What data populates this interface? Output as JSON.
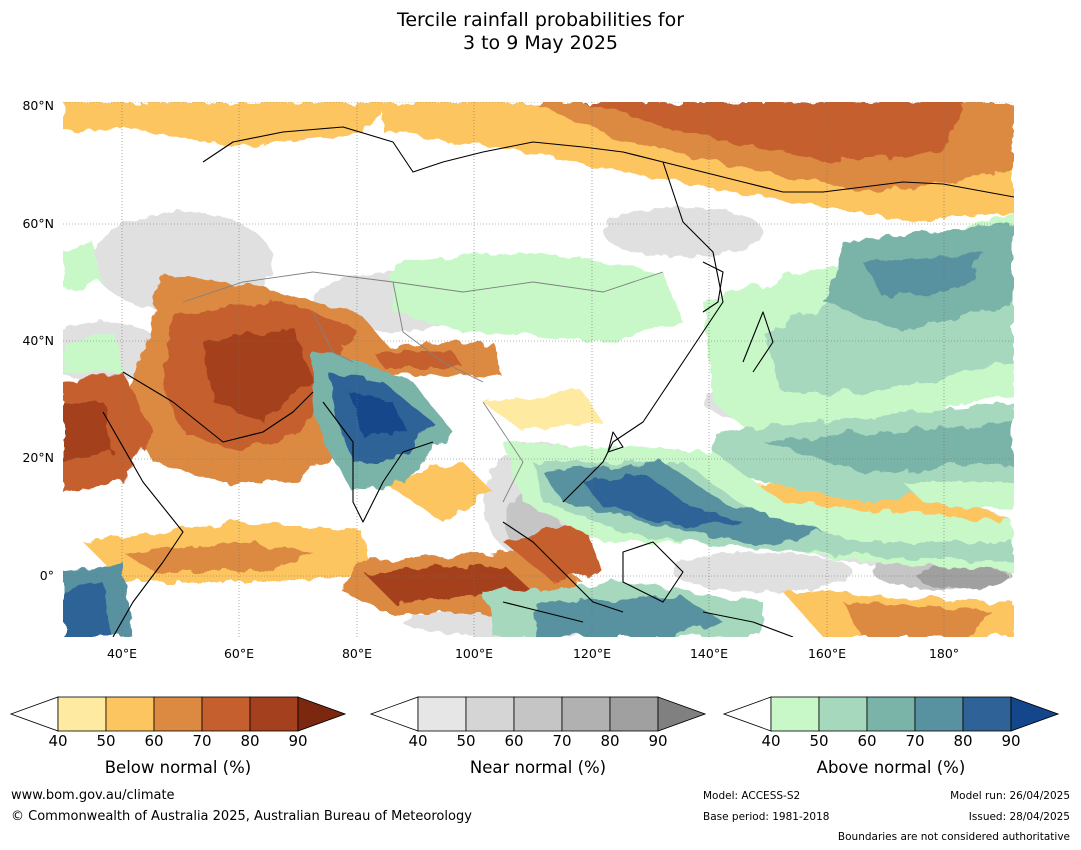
{
  "title": {
    "line1": "Tercile rainfall probabilities for",
    "line2": "3 to 9 May 2025"
  },
  "map": {
    "latitude_labels": [
      "80°N",
      "60°N",
      "40°N",
      "20°N",
      "0°"
    ],
    "longitude_labels": [
      "40°E",
      "60°E",
      "80°E",
      "100°E",
      "120°E",
      "140°E",
      "160°E",
      "180°"
    ],
    "boundary_colors": {
      "coastline": "#000000",
      "borders": "#808080"
    }
  },
  "legends": {
    "below": {
      "title": "Below normal (%)",
      "ticks": [
        "40",
        "50",
        "60",
        "70",
        "80",
        "90"
      ],
      "colors": [
        "#ffffff",
        "#feeaa0",
        "#fdc560",
        "#dc8a42",
        "#c5602e",
        "#a5401f",
        "#7c2710"
      ]
    },
    "near": {
      "title": "Near normal (%)",
      "ticks": [
        "40",
        "50",
        "60",
        "70",
        "80",
        "90"
      ],
      "colors": [
        "#ffffff",
        "#e6e6e6",
        "#d5d5d5",
        "#c5c5c5",
        "#b1b1b1",
        "#a0a0a0",
        "#808080"
      ]
    },
    "above": {
      "title": "Above normal (%)",
      "ticks": [
        "40",
        "50",
        "60",
        "70",
        "80",
        "90"
      ],
      "colors": [
        "#ffffff",
        "#c8f8c8",
        "#a5d8bd",
        "#7ab3a8",
        "#5891a0",
        "#2f6397",
        "#13468a"
      ]
    }
  },
  "footer": {
    "url": "www.bom.gov.au/climate",
    "copyright": "© Commonwealth of Australia 2025, Australian Bureau of Meteorology",
    "model": "Model: ACCESS-S2",
    "base_period": "Base period: 1981-2018",
    "model_run": "Model run: 26/04/2025",
    "issued": "Issued: 28/04/2025",
    "disclaimer": "Boundaries are not considered authoritative"
  }
}
